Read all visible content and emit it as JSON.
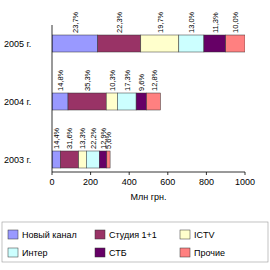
{
  "chart_data": {
    "type": "bar",
    "orientation": "horizontal",
    "stacked": true,
    "x_label": "Млн грн.",
    "categories": [
      "2005 г.",
      "2004 г.",
      "2003 г."
    ],
    "xlim": [
      0,
      1000
    ],
    "xticks": [
      0,
      200,
      400,
      600,
      800,
      1000
    ],
    "series": [
      {
        "name": "Новый канал",
        "color": "#9999ff",
        "values": [
          237,
          83,
          43
        ],
        "share_labels": [
          "23,7%",
          "14,8%",
          "14,4%"
        ]
      },
      {
        "name": "Студия 1+1",
        "color": "#993366",
        "values": [
          223,
          198,
          95
        ],
        "share_labels": [
          "22,3%",
          "35,3%",
          "31,6%"
        ]
      },
      {
        "name": "ICTV",
        "color": "#ffffcc",
        "values": [
          197,
          58,
          40
        ],
        "share_labels": [
          "19,7%",
          "10,3%",
          "13,3%"
        ]
      },
      {
        "name": "Интер",
        "color": "#ccffff",
        "values": [
          130,
          97,
          67
        ],
        "share_labels": [
          "13,0%",
          "17,3%",
          "22,2%"
        ]
      },
      {
        "name": "СТБ",
        "color": "#660066",
        "values": [
          113,
          54,
          39
        ],
        "share_labels": [
          "11,3%",
          "9,6%",
          "12,9%"
        ]
      },
      {
        "name": "Прочие",
        "color": "#ff8080",
        "values": [
          100,
          72,
          17
        ],
        "share_labels": [
          "10,0%",
          "12,8%",
          "5,6%"
        ]
      }
    ]
  }
}
